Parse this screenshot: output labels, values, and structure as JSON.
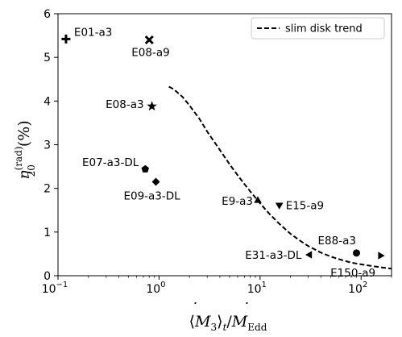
{
  "chart_data": {
    "type": "scatter",
    "xscale": "log",
    "xlim": [
      0.1,
      200
    ],
    "ylim": [
      0,
      6
    ],
    "xticks": [
      {
        "value": 0.1,
        "base": "10",
        "exp": "−1"
      },
      {
        "value": 1,
        "base": "10",
        "exp": "0"
      },
      {
        "value": 10,
        "base": "10",
        "exp": "1"
      },
      {
        "value": 100,
        "base": "10",
        "exp": "2"
      }
    ],
    "yticks": [
      {
        "value": 0,
        "label": "0"
      },
      {
        "value": 1,
        "label": "1"
      },
      {
        "value": 2,
        "label": "2"
      },
      {
        "value": 3,
        "label": "3"
      },
      {
        "value": 4,
        "label": "4"
      },
      {
        "value": 5,
        "label": "5"
      },
      {
        "value": 6,
        "label": "6"
      }
    ],
    "xlabel": {
      "pre": "⟨",
      "M": "M",
      "dot": "˙",
      "sub3": "3",
      "post": "⟩",
      "subt": "t",
      "slash": "/",
      "M2": "M",
      "subEdd": "Edd"
    },
    "ylabel": {
      "eta": "η",
      "sup": "(rad)",
      "sub": "20",
      "unit": "(%)"
    },
    "points": [
      {
        "label": "E01-a3",
        "x": 0.12,
        "y": 5.42,
        "marker": "plus"
      },
      {
        "label": "E08-a9",
        "x": 0.8,
        "y": 5.4,
        "marker": "x"
      },
      {
        "label": "E08-a3",
        "x": 0.85,
        "y": 3.88,
        "marker": "star"
      },
      {
        "label": "E07-a3-DL",
        "x": 0.73,
        "y": 2.44,
        "marker": "pentagon"
      },
      {
        "label": "E09-a3-DL",
        "x": 0.93,
        "y": 2.15,
        "marker": "diamond"
      },
      {
        "label": "E9-a3",
        "x": 9.5,
        "y": 1.72,
        "marker": "triangle-up"
      },
      {
        "label": "E15-a9",
        "x": 15.5,
        "y": 1.62,
        "marker": "triangle-down"
      },
      {
        "label": "E88-a3",
        "x": 90,
        "y": 0.52,
        "marker": "circle"
      },
      {
        "label": "E31-a3-DL",
        "x": 31,
        "y": 0.48,
        "marker": "triangle-left"
      },
      {
        "label": "E150-a9",
        "x": 155,
        "y": 0.46,
        "marker": "triangle-right"
      }
    ],
    "trend": {
      "name": "slim disk trend",
      "style": "dashed",
      "x": [
        1.25,
        1.4,
        1.7,
        2,
        2.5,
        3,
        4,
        5,
        6,
        7,
        8,
        10,
        12,
        15,
        20,
        25,
        30,
        40,
        50,
        60,
        80,
        100,
        130,
        160,
        200
      ],
      "y": [
        4.33,
        4.27,
        4.1,
        3.9,
        3.6,
        3.3,
        2.88,
        2.55,
        2.3,
        2.1,
        1.93,
        1.66,
        1.45,
        1.22,
        0.96,
        0.8,
        0.68,
        0.53,
        0.44,
        0.38,
        0.3,
        0.26,
        0.22,
        0.19,
        0.16
      ]
    },
    "legend": {
      "position": "top-right"
    },
    "grid": false
  }
}
